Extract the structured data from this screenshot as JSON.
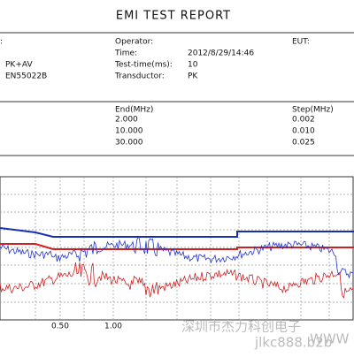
{
  "title": "EMI TEST REPORT",
  "header": {
    "left": [
      ":",
      "PK+AV",
      "EN55022B"
    ],
    "operator_label": "Operator:",
    "time_label": "Time:",
    "time": "2012/8/29/14:46",
    "test_time_label": "Test-time(ms):",
    "test_time": "10",
    "transductor_label": "Transductor:",
    "transductor": "PK",
    "eut_label": "EUT:"
  },
  "table": {
    "columns": [
      "End(MHz)",
      "Step(MHz)"
    ],
    "rows": [
      [
        "2.000",
        "0.002"
      ],
      [
        "10.000",
        "0.010"
      ],
      [
        "30.000",
        "0.025"
      ]
    ]
  },
  "chart": {
    "x_labels": [
      "0.50",
      "1.00"
    ]
  },
  "watermark": [
    "深圳市杰力科创电子",
    "jlkc888.b2b",
    "WWW"
  ]
}
